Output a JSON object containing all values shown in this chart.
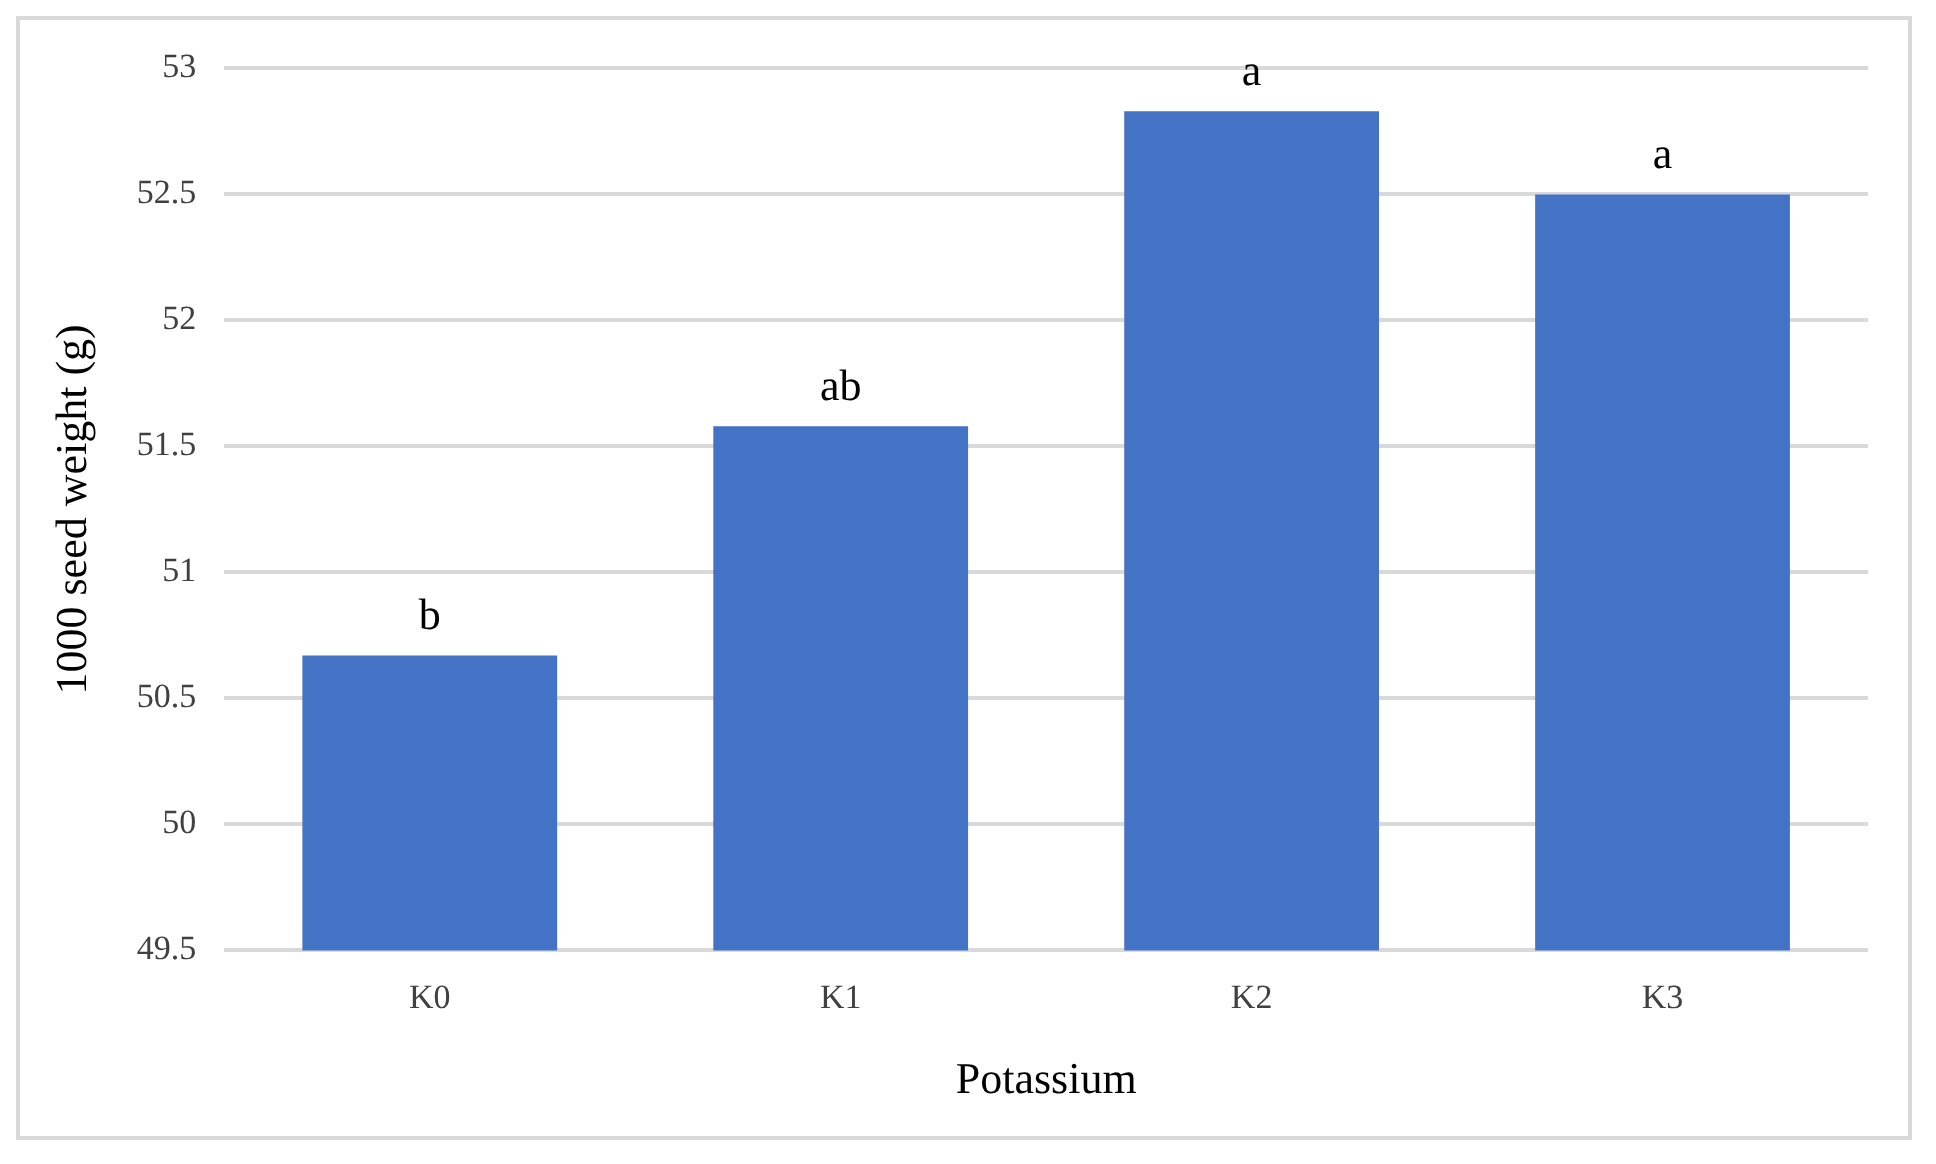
{
  "chart_data": {
    "type": "bar",
    "xlabel": "Potassium",
    "ylabel": "1000 seed weight (g)",
    "categories": [
      "K0",
      "K1",
      "K2",
      "K3"
    ],
    "values": [
      50.67,
      51.58,
      52.83,
      52.5
    ],
    "color": "#4472c4",
    "ylim": [
      49.5,
      53
    ],
    "yticks": [
      49.5,
      50,
      50.5,
      51,
      51.5,
      52,
      52.5,
      53
    ],
    "grid": "y",
    "annotations": [
      {
        "text": "b",
        "x": "K0",
        "y": 50.67
      },
      {
        "text": "ab",
        "x": "K1",
        "y": 51.58
      },
      {
        "text": "a",
        "x": "K2",
        "y": 52.83
      },
      {
        "text": "a",
        "x": "K3",
        "y": 52.5
      }
    ]
  }
}
